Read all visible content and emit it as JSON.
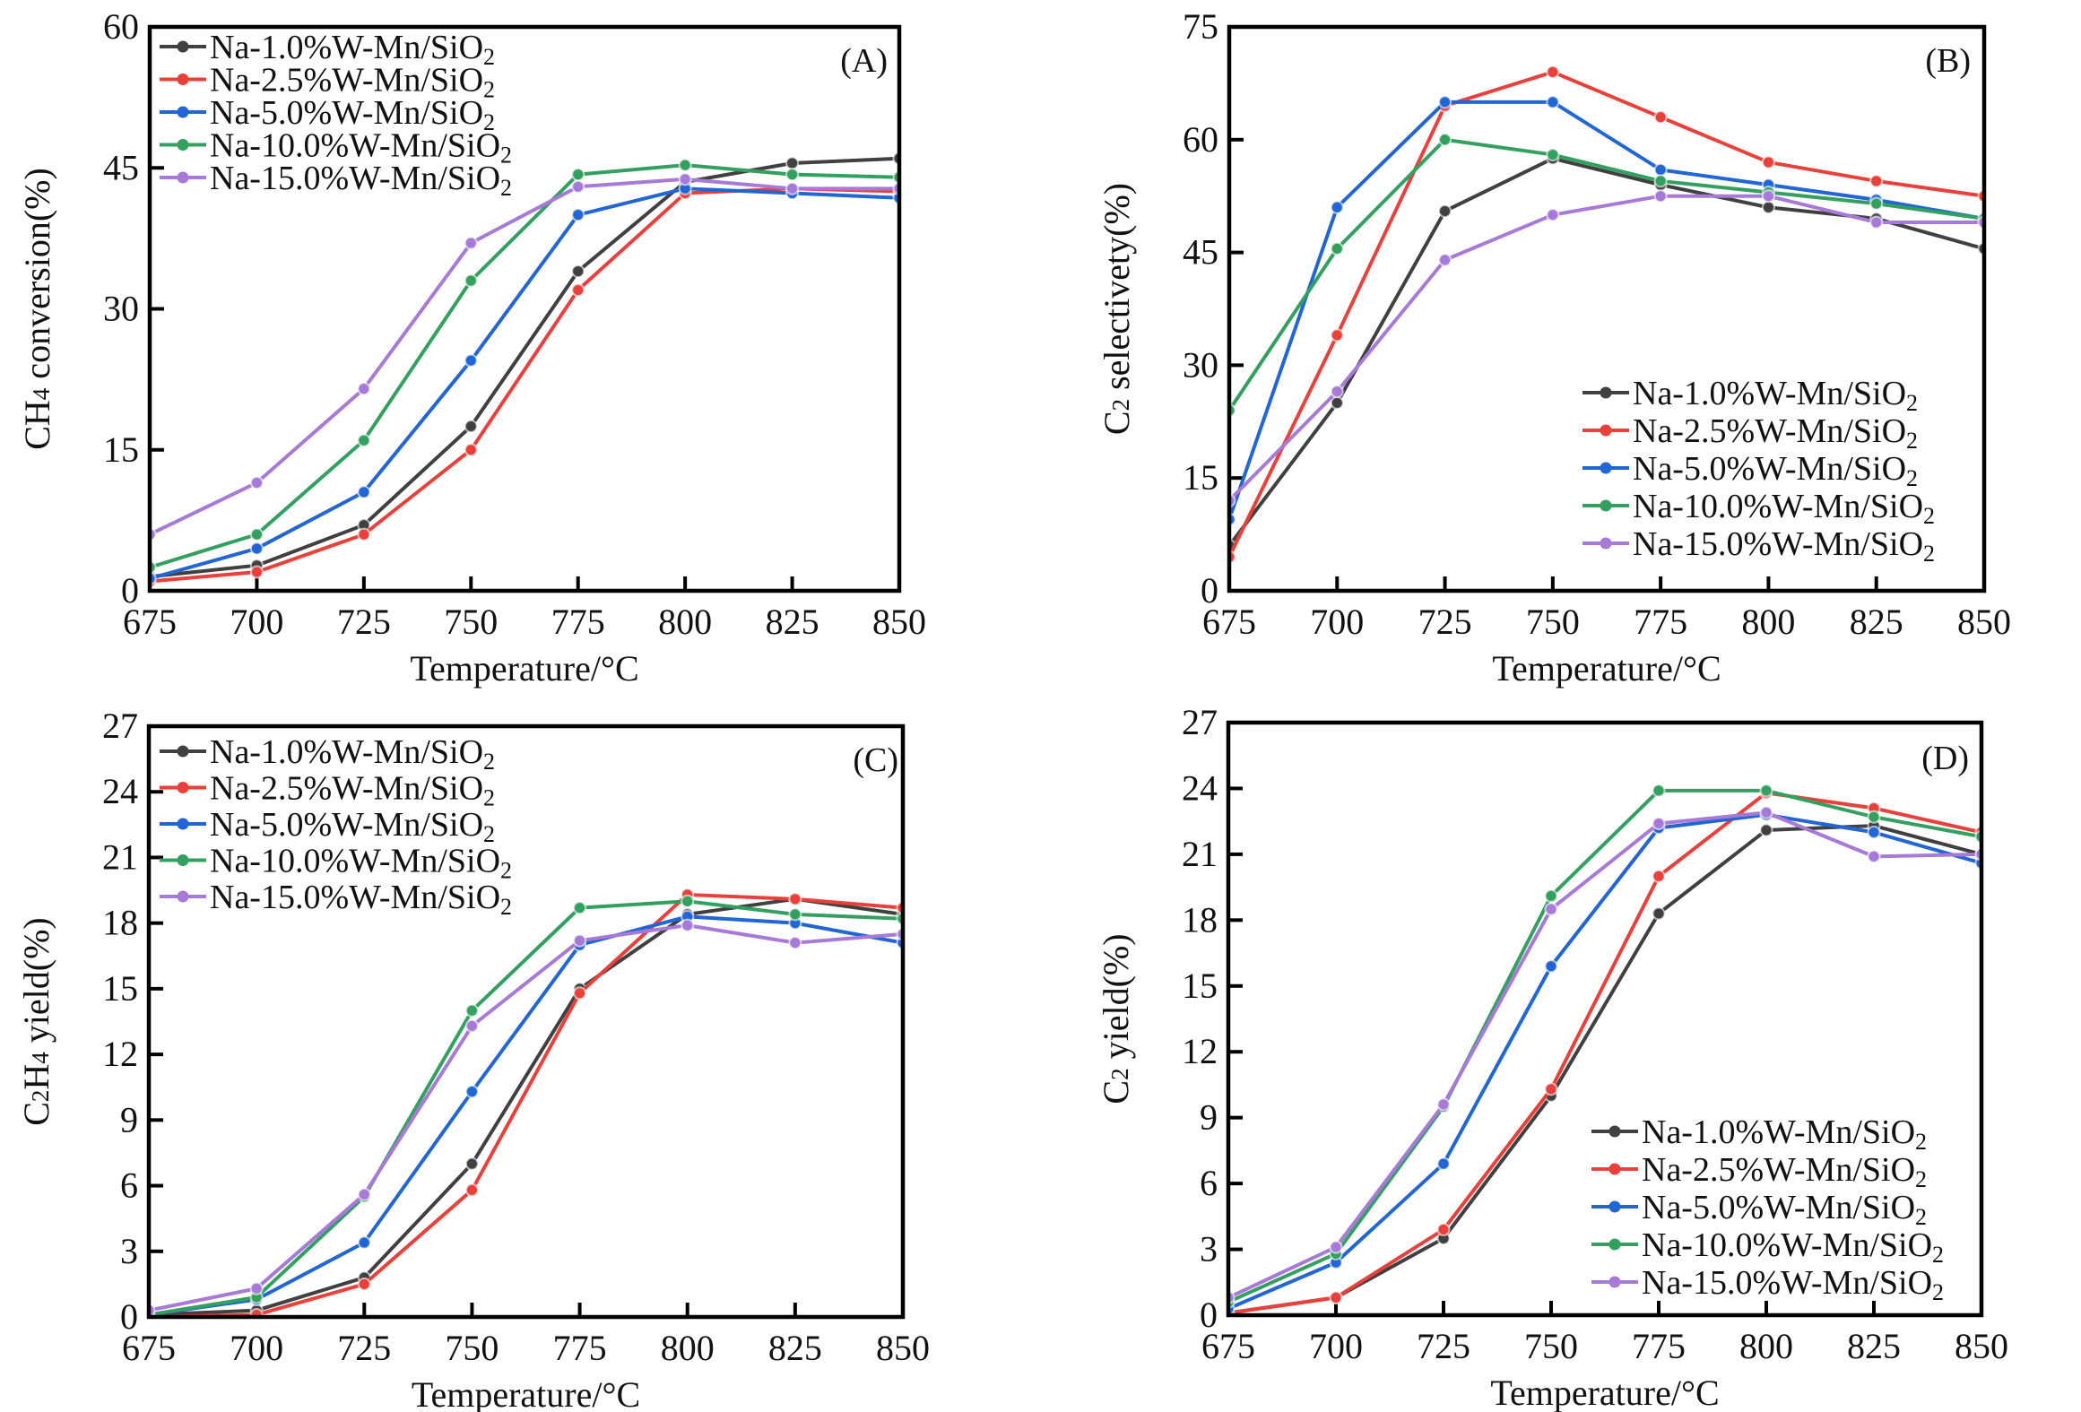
{
  "series_meta": [
    {
      "name": "Na-1.0%W-Mn/SiO",
      "sub": "2",
      "color": "#404040"
    },
    {
      "name": "Na-2.5%W-Mn/SiO",
      "sub": "2",
      "color": "#e8403a"
    },
    {
      "name": "Na-5.0%W-Mn/SiO",
      "sub": "2",
      "color": "#2265d4"
    },
    {
      "name": "Na-10.0%W-Mn/SiO",
      "sub": "2",
      "color": "#34a060"
    },
    {
      "name": "Na-15.0%W-Mn/SiO",
      "sub": "2",
      "color": "#a77ad8"
    }
  ],
  "chart_data": [
    {
      "id": "A",
      "type": "line",
      "panel_tag": "(A)",
      "title": "",
      "xlabel": "Temperature/°C",
      "ylabel": "CH4 conversion(%)",
      "ylabel_parts": [
        "CH",
        "4",
        " conversion(%)"
      ],
      "x": [
        675,
        700,
        725,
        750,
        775,
        800,
        825,
        850
      ],
      "xlim": [
        675,
        850
      ],
      "ylim": [
        0,
        60
      ],
      "yticks": [
        0,
        15,
        30,
        45,
        60
      ],
      "xticks": [
        675,
        700,
        725,
        750,
        775,
        800,
        825,
        850
      ],
      "grid": false,
      "legend_position": "top-left",
      "series": [
        {
          "name": "Na-1.0%W-Mn/SiO2",
          "values": [
            1.5,
            2.7,
            7.0,
            17.5,
            34.0,
            43.5,
            45.5,
            46.0
          ]
        },
        {
          "name": "Na-2.5%W-Mn/SiO2",
          "values": [
            1.0,
            2.0,
            6.0,
            15.0,
            32.0,
            42.3,
            42.8,
            42.5
          ]
        },
        {
          "name": "Na-5.0%W-Mn/SiO2",
          "values": [
            1.3,
            4.5,
            10.5,
            24.5,
            40.0,
            42.8,
            42.3,
            41.8
          ]
        },
        {
          "name": "Na-10.0%W-Mn/SiO2",
          "values": [
            2.5,
            6.0,
            16.0,
            33.0,
            44.3,
            45.3,
            44.3,
            44.0
          ]
        },
        {
          "name": "Na-15.0%W-Mn/SiO2",
          "values": [
            6.0,
            11.5,
            21.5,
            37.0,
            43.0,
            43.8,
            42.8,
            42.8
          ]
        }
      ]
    },
    {
      "id": "B",
      "type": "line",
      "panel_tag": "(B)",
      "title": "",
      "xlabel": "Temperature/°C",
      "ylabel": "C2 selectivety(%)",
      "ylabel_parts": [
        "C",
        "2",
        " selectivety(%)"
      ],
      "x": [
        675,
        700,
        725,
        750,
        775,
        800,
        825,
        850
      ],
      "xlim": [
        675,
        850
      ],
      "ylim": [
        0,
        75
      ],
      "yticks": [
        0,
        15,
        30,
        45,
        60,
        75
      ],
      "xticks": [
        675,
        700,
        725,
        750,
        775,
        800,
        825,
        850
      ],
      "grid": false,
      "legend_position": "bottom-right",
      "series": [
        {
          "name": "Na-1.0%W-Mn/SiO2",
          "values": [
            6.0,
            25.0,
            50.5,
            57.5,
            54.0,
            51.0,
            49.5,
            45.5
          ]
        },
        {
          "name": "Na-2.5%W-Mn/SiO2",
          "values": [
            4.5,
            34.0,
            64.5,
            69.0,
            63.0,
            57.0,
            54.5,
            52.5
          ]
        },
        {
          "name": "Na-5.0%W-Mn/SiO2",
          "values": [
            9.5,
            51.0,
            65.0,
            65.0,
            56.0,
            54.0,
            52.0,
            49.5
          ]
        },
        {
          "name": "Na-10.0%W-Mn/SiO2",
          "values": [
            24.0,
            45.5,
            60.0,
            58.0,
            54.5,
            53.0,
            51.5,
            49.5
          ]
        },
        {
          "name": "Na-15.0%W-Mn/SiO2",
          "values": [
            12.0,
            26.5,
            44.0,
            50.0,
            52.5,
            52.5,
            49.0,
            49.0
          ]
        }
      ]
    },
    {
      "id": "C",
      "type": "line",
      "panel_tag": "(C)",
      "title": "",
      "xlabel": "Temperature/°C",
      "ylabel": "C2H4 yield(%)",
      "ylabel_parts": [
        "C",
        "2",
        "H",
        "4",
        " yield(%)"
      ],
      "x": [
        675,
        700,
        725,
        750,
        775,
        800,
        825,
        850
      ],
      "xlim": [
        675,
        850
      ],
      "ylim": [
        0,
        27
      ],
      "yticks": [
        0,
        3,
        6,
        9,
        12,
        15,
        18,
        21,
        24,
        27
      ],
      "xticks": [
        675,
        700,
        725,
        750,
        775,
        800,
        825,
        850
      ],
      "grid": false,
      "legend_position": "top-left",
      "series": [
        {
          "name": "Na-1.0%W-Mn/SiO2",
          "values": [
            0.1,
            0.3,
            1.8,
            7.0,
            15.0,
            18.4,
            19.1,
            18.4
          ]
        },
        {
          "name": "Na-2.5%W-Mn/SiO2",
          "values": [
            0.0,
            0.1,
            1.5,
            5.8,
            14.8,
            19.3,
            19.1,
            18.7
          ]
        },
        {
          "name": "Na-5.0%W-Mn/SiO2",
          "values": [
            0.1,
            0.8,
            3.4,
            10.3,
            17.0,
            18.3,
            18.0,
            17.1
          ]
        },
        {
          "name": "Na-10.0%W-Mn/SiO2",
          "values": [
            0.1,
            0.9,
            5.5,
            14.0,
            18.7,
            19.0,
            18.4,
            18.2
          ]
        },
        {
          "name": "Na-15.0%W-Mn/SiO2",
          "values": [
            0.3,
            1.3,
            5.6,
            13.3,
            17.2,
            17.9,
            17.1,
            17.5
          ]
        }
      ]
    },
    {
      "id": "D",
      "type": "line",
      "panel_tag": "(D)",
      "title": "",
      "xlabel": "Temperature/°C",
      "ylabel": "C2 yield(%)",
      "ylabel_parts": [
        "C",
        "2",
        " yield(%)"
      ],
      "x": [
        675,
        700,
        725,
        750,
        775,
        800,
        825,
        850
      ],
      "xlim": [
        675,
        850
      ],
      "ylim": [
        0,
        27
      ],
      "yticks": [
        0,
        3,
        6,
        9,
        12,
        15,
        18,
        21,
        24,
        27
      ],
      "xticks": [
        675,
        700,
        725,
        750,
        775,
        800,
        825,
        850
      ],
      "grid": false,
      "legend_position": "bottom-right",
      "series": [
        {
          "name": "Na-1.0%W-Mn/SiO2",
          "values": [
            0.1,
            0.8,
            3.5,
            10.0,
            18.3,
            22.1,
            22.3,
            21.0
          ]
        },
        {
          "name": "Na-2.5%W-Mn/SiO2",
          "values": [
            0.1,
            0.8,
            3.9,
            10.3,
            20.0,
            23.8,
            23.1,
            22.0
          ]
        },
        {
          "name": "Na-5.0%W-Mn/SiO2",
          "values": [
            0.3,
            2.4,
            6.9,
            15.9,
            22.2,
            22.8,
            22.0,
            20.6
          ]
        },
        {
          "name": "Na-10.0%W-Mn/SiO2",
          "values": [
            0.6,
            2.8,
            9.5,
            19.1,
            23.9,
            23.9,
            22.7,
            21.8
          ]
        },
        {
          "name": "Na-15.0%W-Mn/SiO2",
          "values": [
            0.8,
            3.1,
            9.6,
            18.5,
            22.4,
            22.9,
            20.9,
            21.0
          ]
        }
      ]
    }
  ]
}
